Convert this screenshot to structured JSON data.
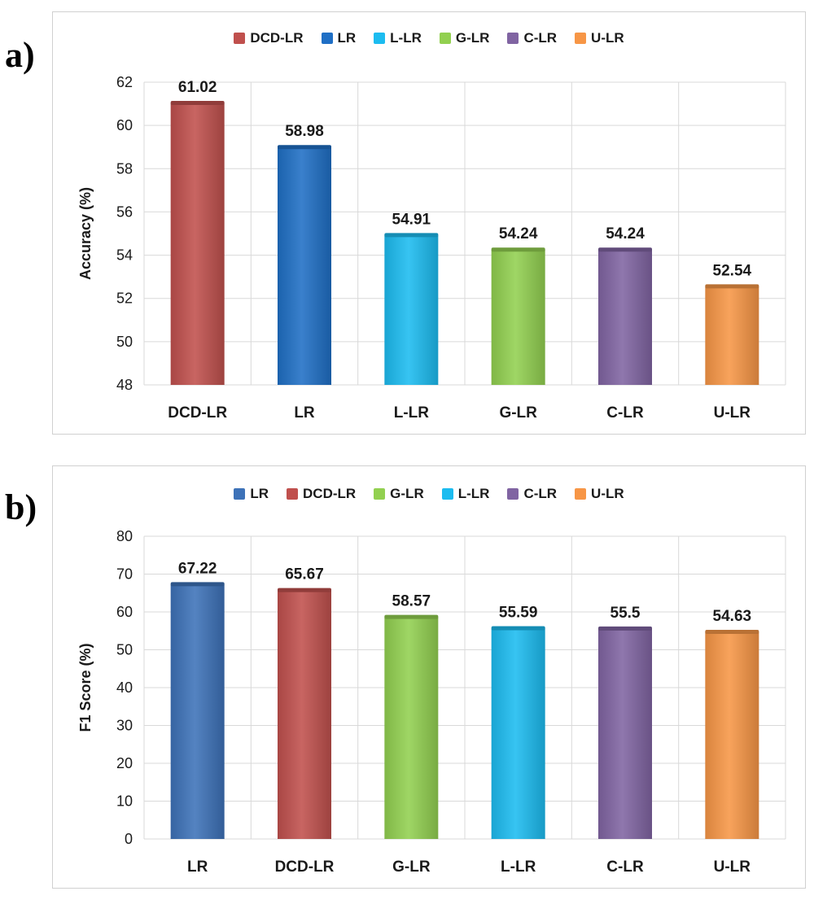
{
  "panels": [
    {
      "label": "a)",
      "chart_data": {
        "type": "bar",
        "categories": [
          "DCD-LR",
          "LR",
          "L-LR",
          "G-LR",
          "C-LR",
          "U-LR"
        ],
        "values": [
          61.02,
          58.98,
          54.91,
          54.24,
          54.24,
          52.54
        ],
        "value_labels": [
          "61.02",
          "58.98",
          "54.91",
          "54.24",
          "54.24",
          "52.54"
        ],
        "colors": [
          "#c0504d",
          "#1f6fc5",
          "#1cbcf0",
          "#92d050",
          "#8064a2",
          "#f79646"
        ],
        "ylabel": "Accuracy (%)",
        "xlabel": "",
        "ylim": [
          48,
          62
        ],
        "yticks": [
          48,
          50,
          52,
          54,
          56,
          58,
          60,
          62
        ],
        "grid": true,
        "legend_placement": "top",
        "legend": [
          {
            "name": "DCD-LR",
            "color": "#c0504d"
          },
          {
            "name": "LR",
            "color": "#1f6fc5"
          },
          {
            "name": "L-LR",
            "color": "#1cbcf0"
          },
          {
            "name": "G-LR",
            "color": "#92d050"
          },
          {
            "name": "C-LR",
            "color": "#8064a2"
          },
          {
            "name": "U-LR",
            "color": "#f79646"
          }
        ]
      }
    },
    {
      "label": "b)",
      "chart_data": {
        "type": "bar",
        "categories": [
          "LR",
          "DCD-LR",
          "G-LR",
          "L-LR",
          "C-LR",
          "U-LR"
        ],
        "values": [
          67.22,
          65.67,
          58.57,
          55.59,
          55.5,
          54.63
        ],
        "value_labels": [
          "67.22",
          "65.67",
          "58.57",
          "55.59",
          "55.5",
          "54.63"
        ],
        "colors": [
          "#3d72b8",
          "#c0504d",
          "#92d050",
          "#1cbcf0",
          "#8064a2",
          "#f79646"
        ],
        "ylabel": "F1 Score (%)",
        "xlabel": "",
        "ylim": [
          0,
          80
        ],
        "yticks": [
          0,
          10,
          20,
          30,
          40,
          50,
          60,
          70,
          80
        ],
        "grid": true,
        "legend_placement": "top",
        "legend": [
          {
            "name": "LR",
            "color": "#3d72b8"
          },
          {
            "name": "DCD-LR",
            "color": "#c0504d"
          },
          {
            "name": "G-LR",
            "color": "#92d050"
          },
          {
            "name": "L-LR",
            "color": "#1cbcf0"
          },
          {
            "name": "C-LR",
            "color": "#8064a2"
          },
          {
            "name": "U-LR",
            "color": "#f79646"
          }
        ]
      }
    }
  ]
}
